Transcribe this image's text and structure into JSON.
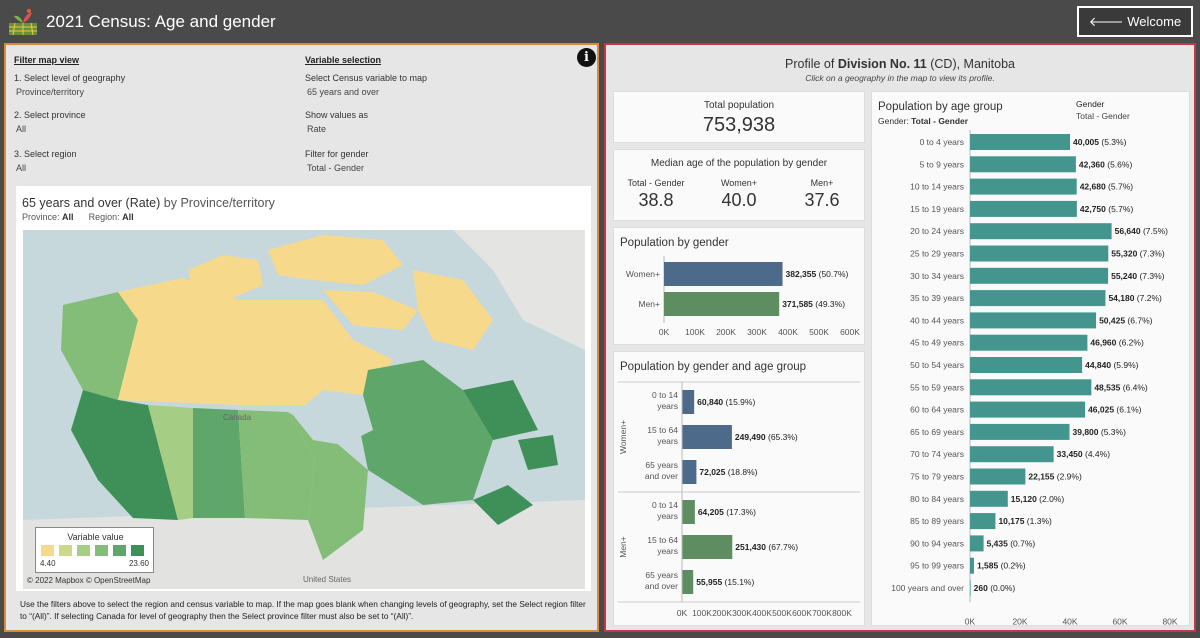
{
  "header": {
    "title": "2021 Census: Age and gender",
    "welcome_button": "🡐 Welcome page"
  },
  "filters": {
    "heading": "Filter map view",
    "geo_label": "1. Select level of geography",
    "geo_value": "Province/territory",
    "prov_label": "2. Select province",
    "prov_value": "All",
    "region_label": "3. Select region",
    "region_value": "All"
  },
  "variables": {
    "heading": "Variable selection",
    "var_label": "Select Census variable to map",
    "var_value": "65 years and over",
    "show_label": "Show values as",
    "show_value": "Rate",
    "gender_label": "Filter for gender",
    "gender_value": "Total - Gender"
  },
  "map": {
    "title_var": "65 years and over (Rate)",
    "title_by": "by",
    "title_geo": "Province/territory",
    "prov_label": "Province:",
    "prov_value": "All",
    "region_label": "Region:",
    "region_value": "All",
    "legend_title": "Variable value",
    "legend_min": "4.40",
    "legend_max": "23.60",
    "legend_colors": [
      "#f7d98c",
      "#c9da8c",
      "#a6cd84",
      "#84bd78",
      "#5fa66a",
      "#3f8f58"
    ],
    "attribution": "© 2022 Mapbox © OpenStreetMap",
    "label_canada": "Canada",
    "label_us": "United States",
    "note": "Use the filters above to select the region and census variable to map. If the map goes blank when changing levels of geography, set the Select region filter to “(All)”. If selecting Canada for level of geography then the Select province filter must also be set to “(All)”."
  },
  "profile": {
    "title_pre": "Profile of",
    "division": "Division No. 11",
    "title_post": "(CD), Manitoba",
    "subtitle": "Click on a geography in the map to view its profile."
  },
  "total_population": {
    "label": "Total population",
    "value": "753,938"
  },
  "median_age": {
    "title": "Median age of the population by gender",
    "items": [
      {
        "label": "Total - Gender",
        "value": "38.8"
      },
      {
        "label": "Women+",
        "value": "40.0"
      },
      {
        "label": "Men+",
        "value": "37.6"
      }
    ]
  },
  "gender_chart": {
    "title": "Population by gender",
    "categories": [
      "Women+",
      "Men+"
    ],
    "values": [
      382355,
      371585
    ],
    "labels_bold": [
      "382,355",
      "371,585"
    ],
    "labels_pct": [
      "(50.7%)",
      "(49.3%)"
    ],
    "colors": [
      "#4e6a8a",
      "#5e8d62"
    ],
    "ticks": [
      "0K",
      "100K",
      "200K",
      "300K",
      "400K",
      "500K",
      "600K"
    ],
    "max": 600000
  },
  "gender_age_chart": {
    "title": "Population by gender and age group",
    "groups": [
      {
        "name": "Women+",
        "color": "#4e6a8a",
        "rows": [
          {
            "label_lines": [
              "0 to 14",
              "years"
            ],
            "value": 60840,
            "bold": "60,840",
            "pct": "(15.9%)"
          },
          {
            "label_lines": [
              "15 to 64",
              "years"
            ],
            "value": 249490,
            "bold": "249,490",
            "pct": "(65.3%)"
          },
          {
            "label_lines": [
              "65 years",
              "and over"
            ],
            "value": 72025,
            "bold": "72,025",
            "pct": "(18.8%)"
          }
        ]
      },
      {
        "name": "Men+",
        "color": "#5e8d62",
        "rows": [
          {
            "label_lines": [
              "0 to 14",
              "years"
            ],
            "value": 64205,
            "bold": "64,205",
            "pct": "(17.3%)"
          },
          {
            "label_lines": [
              "15 to 64",
              "years"
            ],
            "value": 251430,
            "bold": "251,430",
            "pct": "(67.7%)"
          },
          {
            "label_lines": [
              "65 years",
              "and over"
            ],
            "value": 55955,
            "bold": "55,955",
            "pct": "(15.1%)"
          }
        ]
      }
    ],
    "ticks": [
      "0K",
      "100K",
      "200K",
      "300K",
      "400K",
      "500K",
      "600K",
      "700K",
      "800K"
    ],
    "max": 800000
  },
  "age_chart": {
    "title": "Population by age group",
    "subtitle_label": "Gender:",
    "subtitle_value": "Total - Gender",
    "filter_label": "Gender",
    "filter_value": "Total - Gender",
    "color": "#45958f",
    "categories": [
      "0 to 4 years",
      "5 to 9 years",
      "10 to 14 years",
      "15 to 19 years",
      "20 to 24 years",
      "25 to 29 years",
      "30 to 34 years",
      "35 to 39 years",
      "40 to 44 years",
      "45 to 49 years",
      "50 to 54 years",
      "55 to 59 years",
      "60 to 64 years",
      "65 to 69 years",
      "70 to 74 years",
      "75 to 79 years",
      "80 to 84 years",
      "85 to 89 years",
      "90 to 94 years",
      "95 to 99 years",
      "100 years and over"
    ],
    "values": [
      40005,
      42360,
      42680,
      42750,
      56640,
      55320,
      55240,
      54180,
      50425,
      46960,
      44840,
      48535,
      46025,
      39800,
      33450,
      22155,
      15120,
      10175,
      5435,
      1585,
      260
    ],
    "labels_bold": [
      "40,005",
      "42,360",
      "42,680",
      "42,750",
      "56,640",
      "55,320",
      "55,240",
      "54,180",
      "50,425",
      "46,960",
      "44,840",
      "48,535",
      "46,025",
      "39,800",
      "33,450",
      "22,155",
      "15,120",
      "10,175",
      "5,435",
      "1,585",
      "260"
    ],
    "labels_pct": [
      "(5.3%)",
      "(5.6%)",
      "(5.7%)",
      "(5.7%)",
      "(7.5%)",
      "(7.3%)",
      "(7.3%)",
      "(7.2%)",
      "(6.7%)",
      "(6.2%)",
      "(5.9%)",
      "(6.4%)",
      "(6.1%)",
      "(5.3%)",
      "(4.4%)",
      "(2.9%)",
      "(2.0%)",
      "(1.3%)",
      "(0.7%)",
      "(0.2%)",
      "(0.0%)"
    ],
    "ticks": [
      "0K",
      "20K",
      "40K",
      "60K",
      "80K"
    ],
    "max": 80000
  },
  "chart_data": [
    {
      "type": "bar",
      "title": "Population by gender",
      "categories": [
        "Women+",
        "Men+"
      ],
      "values": [
        382355,
        371585
      ],
      "xlim": [
        0,
        600000
      ]
    },
    {
      "type": "bar",
      "title": "Population by gender and age group",
      "categories": [
        "0 to 14 years",
        "15 to 64 years",
        "65 years and over"
      ],
      "series": [
        {
          "name": "Women+",
          "values": [
            60840,
            249490,
            72025
          ]
        },
        {
          "name": "Men+",
          "values": [
            64205,
            251430,
            55955
          ]
        }
      ],
      "xlim": [
        0,
        800000
      ]
    },
    {
      "type": "bar",
      "title": "Population by age group",
      "categories": [
        "0 to 4 years",
        "5 to 9 years",
        "10 to 14 years",
        "15 to 19 years",
        "20 to 24 years",
        "25 to 29 years",
        "30 to 34 years",
        "35 to 39 years",
        "40 to 44 years",
        "45 to 49 years",
        "50 to 54 years",
        "55 to 59 years",
        "60 to 64 years",
        "65 to 69 years",
        "70 to 74 years",
        "75 to 79 years",
        "80 to 84 years",
        "85 to 89 years",
        "90 to 94 years",
        "95 to 99 years",
        "100 years and over"
      ],
      "values": [
        40005,
        42360,
        42680,
        42750,
        56640,
        55320,
        55240,
        54180,
        50425,
        46960,
        44840,
        48535,
        46025,
        39800,
        33450,
        22155,
        15120,
        10175,
        5435,
        1585,
        260
      ],
      "xlim": [
        0,
        80000
      ]
    }
  ]
}
